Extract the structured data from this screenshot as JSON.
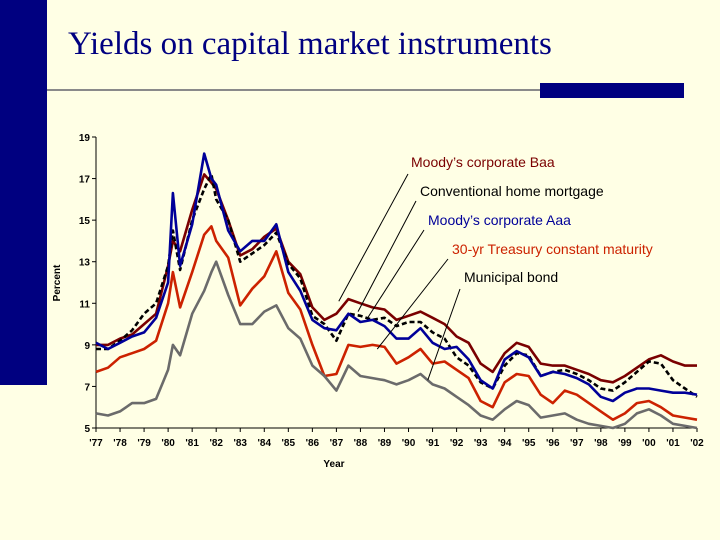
{
  "title": "Yields on capital market instruments",
  "colors": {
    "background": "#FFFFE5",
    "accent": "#000080"
  },
  "chart_data": {
    "type": "line",
    "xlabel": "Year",
    "ylabel": "Percent",
    "ylim": [
      5,
      19
    ],
    "xlim": [
      1977,
      2002
    ],
    "y_ticks": [
      "5",
      "7",
      "9",
      "11",
      "13",
      "15",
      "17",
      "19"
    ],
    "x_ticks": [
      "'77",
      "'78",
      "'79",
      "'80",
      "'81",
      "'82",
      "'83",
      "'84",
      "'85",
      "'86",
      "'87",
      "'88",
      "'89",
      "'90",
      "'91",
      "'92",
      "'93",
      "'94",
      "'95",
      "'96",
      "'97",
      "'98",
      "'99",
      "'00",
      "'01",
      "'02"
    ],
    "grid": false,
    "x": [
      1977,
      1977.5,
      1978,
      1978.5,
      1979,
      1979.5,
      1980,
      1980.2,
      1980.5,
      1981,
      1981.5,
      1981.8,
      1982,
      1982.5,
      1983,
      1983.5,
      1984,
      1984.5,
      1985,
      1985.5,
      1986,
      1986.5,
      1987,
      1987.5,
      1988,
      1988.5,
      1989,
      1989.5,
      1990,
      1990.5,
      1991,
      1991.5,
      1992,
      1992.5,
      1993,
      1993.5,
      1994,
      1994.5,
      1995,
      1995.5,
      1996,
      1996.5,
      1997,
      1997.5,
      1998,
      1998.5,
      1999,
      1999.5,
      2000,
      2000.5,
      2001,
      2001.5,
      2002
    ],
    "series": [
      {
        "name": "Moody’s corporate Baa",
        "color": "#7A0000",
        "dash": "",
        "values": [
          9.0,
          9.0,
          9.3,
          9.5,
          10.0,
          10.5,
          12.8,
          14.0,
          13.5,
          15.5,
          17.2,
          16.8,
          16.5,
          15.0,
          13.3,
          13.6,
          14.2,
          14.6,
          13.0,
          12.4,
          10.8,
          10.2,
          10.5,
          11.2,
          11.0,
          10.8,
          10.7,
          10.2,
          10.4,
          10.6,
          10.3,
          10.0,
          9.4,
          9.1,
          8.1,
          7.7,
          8.6,
          9.1,
          8.9,
          8.1,
          8.0,
          8.0,
          7.8,
          7.6,
          7.3,
          7.2,
          7.5,
          7.9,
          8.3,
          8.5,
          8.2,
          8.0,
          8.0
        ]
      },
      {
        "name": "Conventional home mortgage",
        "color": "#000000",
        "dash": "5,3",
        "values": [
          8.8,
          8.8,
          9.2,
          9.7,
          10.5,
          11.0,
          12.8,
          14.5,
          12.6,
          15.0,
          16.5,
          17.2,
          16.0,
          15.0,
          13.0,
          13.4,
          13.8,
          14.4,
          12.9,
          12.2,
          10.4,
          10.0,
          9.2,
          10.5,
          10.4,
          10.2,
          10.3,
          9.9,
          10.1,
          10.1,
          9.6,
          9.3,
          8.4,
          8.0,
          7.2,
          6.9,
          8.0,
          8.6,
          8.5,
          7.5,
          7.7,
          7.8,
          7.6,
          7.3,
          6.9,
          6.8,
          7.2,
          7.7,
          8.2,
          8.1,
          7.3,
          6.9,
          6.5
        ]
      },
      {
        "name": "Moody’s corporate Aaa",
        "color": "#000099",
        "dash": "",
        "values": [
          9.1,
          8.8,
          9.1,
          9.4,
          9.6,
          10.3,
          12.0,
          16.3,
          12.8,
          14.8,
          18.2,
          17.0,
          16.7,
          14.5,
          13.5,
          14.0,
          14.0,
          14.8,
          12.5,
          11.6,
          10.2,
          9.8,
          9.7,
          10.5,
          10.1,
          10.2,
          9.9,
          9.3,
          9.3,
          9.8,
          9.1,
          8.8,
          8.9,
          8.3,
          7.3,
          6.9,
          8.3,
          8.7,
          8.4,
          7.5,
          7.7,
          7.6,
          7.4,
          7.1,
          6.5,
          6.3,
          6.7,
          6.9,
          6.9,
          6.8,
          6.7,
          6.7,
          6.6
        ]
      },
      {
        "name": "30-yr Treasury constant maturity",
        "color": "#CC2200",
        "dash": "",
        "values": [
          7.7,
          7.9,
          8.4,
          8.6,
          8.8,
          9.2,
          11.0,
          12.5,
          10.8,
          12.5,
          14.3,
          14.7,
          14.0,
          13.2,
          10.9,
          11.7,
          12.3,
          13.5,
          11.5,
          10.7,
          9.0,
          7.5,
          7.6,
          9.0,
          8.9,
          9.0,
          8.9,
          8.1,
          8.4,
          8.8,
          8.1,
          8.2,
          7.8,
          7.4,
          6.3,
          6.0,
          7.2,
          7.6,
          7.5,
          6.6,
          6.2,
          6.8,
          6.6,
          6.2,
          5.8,
          5.4,
          5.7,
          6.2,
          6.3,
          6.0,
          5.6,
          5.5,
          5.4
        ]
      },
      {
        "name": "Municipal bond",
        "color": "#6B6B6B",
        "dash": "",
        "values": [
          5.7,
          5.6,
          5.8,
          6.2,
          6.2,
          6.4,
          7.8,
          9.0,
          8.5,
          10.5,
          11.6,
          12.5,
          13.0,
          11.4,
          10.0,
          10.0,
          10.6,
          10.9,
          9.8,
          9.3,
          8.0,
          7.5,
          6.8,
          8.0,
          7.5,
          7.4,
          7.3,
          7.1,
          7.3,
          7.6,
          7.1,
          6.9,
          6.5,
          6.1,
          5.6,
          5.4,
          5.9,
          6.3,
          6.1,
          5.5,
          5.6,
          5.7,
          5.4,
          5.2,
          5.1,
          5.0,
          5.2,
          5.7,
          5.9,
          5.6,
          5.2,
          5.1,
          5.0
        ]
      }
    ],
    "annotations": [
      {
        "label": "Moody’s corporate Baa",
        "color": "#7A0000",
        "x": 1987.1,
        "y": 11.1
      },
      {
        "label": "Conventional home mortgage",
        "color": "#000000",
        "x": 1987.9,
        "y": 10.6
      },
      {
        "label": "Moody’s corporate Aaa",
        "color": "#000099",
        "x": 1988.3,
        "y": 10.3
      },
      {
        "label": "30-yr Treasury constant maturity",
        "color": "#CC2200",
        "x": 1988.7,
        "y": 8.8
      },
      {
        "label": "Municipal bond",
        "color": "#000000",
        "x": 1990.8,
        "y": 7.3
      }
    ]
  }
}
